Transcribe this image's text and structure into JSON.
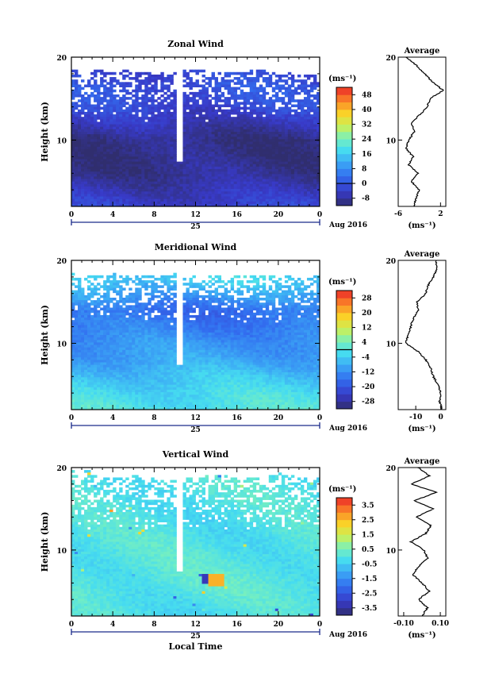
{
  "chart_data": [
    {
      "type": "heatmap",
      "title": "Zonal Wind",
      "xlabel": "",
      "ylabel": "Height (km)",
      "xlim": [
        0,
        24
      ],
      "ylim": [
        2,
        20
      ],
      "x_ticks": [
        "0",
        "4",
        "8",
        "12",
        "16",
        "20",
        "0"
      ],
      "y_ticks": [
        "10",
        "20"
      ],
      "date_label": "25",
      "date_right": "Aug 2016",
      "colorbar": {
        "unit": "(ms⁻¹)",
        "ticks": [
          "48",
          "40",
          "32",
          "24",
          "16",
          "8",
          "0",
          "-8"
        ],
        "range": [
          -12,
          52
        ],
        "contour_level": 0
      },
      "field": {
        "data_top_km": [
          18.3,
          18.0,
          18.2,
          17.8,
          17.6,
          17.9,
          18.1,
          17.7,
          17.9,
          18.0,
          17.8,
          17.6,
          17.5
        ],
        "profile_km": [
          2,
          4,
          6,
          8,
          10,
          12,
          14,
          16,
          18
        ],
        "profile_ms": [
          -3,
          -6,
          -9,
          -10,
          -10,
          -6,
          -2,
          0,
          -2
        ]
      },
      "profile": {
        "title": "Average",
        "xlabel": "(ms⁻¹)",
        "xlim": [
          -6,
          3
        ],
        "x_ticks": [
          "-6",
          "2"
        ],
        "y_ticks": [
          "10",
          "20"
        ],
        "height_km": [
          2,
          3,
          4,
          5,
          6,
          7,
          8,
          9,
          10,
          11,
          12,
          13,
          14,
          15,
          16,
          17,
          18,
          19,
          20
        ],
        "value_ms": [
          -3.0,
          -2.6,
          -2.0,
          -3.5,
          -2.2,
          -4.0,
          -3.2,
          -4.5,
          -4.0,
          -3.0,
          -3.5,
          -2.0,
          -0.5,
          0.0,
          2.5,
          0.5,
          -1.0,
          -2.5,
          -4.5
        ]
      }
    },
    {
      "type": "heatmap",
      "title": "Meridional Wind",
      "xlabel": "",
      "ylabel": "Height (km)",
      "xlim": [
        0,
        24
      ],
      "ylim": [
        2,
        20
      ],
      "x_ticks": [
        "0",
        "4",
        "8",
        "12",
        "16",
        "20",
        "0"
      ],
      "y_ticks": [
        "10",
        "20"
      ],
      "date_label": "25",
      "date_right": "Aug 2016",
      "colorbar": {
        "unit": "(ms⁻¹)",
        "ticks": [
          "28",
          "20",
          "12",
          "4",
          "-4",
          "-12",
          "-20",
          "-28"
        ],
        "range": [
          -32,
          32
        ],
        "contour_level": 0
      },
      "field": {
        "data_top_km": [
          18.0,
          17.8,
          18.1,
          17.7,
          17.9,
          18.0,
          17.6,
          17.8,
          17.9,
          17.7,
          17.8,
          17.6,
          17.7
        ],
        "profile_km": [
          2,
          4,
          6,
          8,
          10,
          12,
          14,
          16,
          18
        ],
        "profile_ms": [
          0,
          -2,
          -5,
          -9,
          -11,
          -14,
          -16,
          -9,
          -3
        ]
      },
      "profile": {
        "title": "Average",
        "xlabel": "(ms⁻¹)",
        "xlim": [
          -17,
          2
        ],
        "x_ticks": [
          "-10",
          "0"
        ],
        "y_ticks": [
          "10",
          "20"
        ],
        "height_km": [
          2,
          3,
          4,
          5,
          6,
          7,
          8,
          9,
          10,
          11,
          12,
          13,
          14,
          15,
          16,
          17,
          18,
          19,
          20
        ],
        "value_ms": [
          0.5,
          -0.5,
          0.0,
          -1.0,
          -3.0,
          -4.0,
          -6.0,
          -9.0,
          -14.0,
          -13.0,
          -12.0,
          -11.0,
          -9.0,
          -9.5,
          -6.0,
          -5.0,
          -3.0,
          -1.5,
          -2.0
        ]
      }
    },
    {
      "type": "heatmap",
      "title": "Vertical Wind",
      "xlabel": "Local Time",
      "ylabel": "Height (km)",
      "xlim": [
        0,
        24
      ],
      "ylim": [
        2,
        20
      ],
      "x_ticks": [
        "0",
        "4",
        "8",
        "12",
        "16",
        "20",
        "0"
      ],
      "y_ticks": [
        "10",
        "20"
      ],
      "date_label": "25",
      "date_right": "Aug 2016",
      "colorbar": {
        "unit": "(ms⁻¹)",
        "ticks": [
          "3.5",
          "2.5",
          "1.5",
          "0.5",
          "-0.5",
          "-1.5",
          "-2.5",
          "-3.5"
        ],
        "range": [
          -4,
          4
        ],
        "contour_level": null
      },
      "field": {
        "data_top_km": [
          19.8,
          19.0,
          18.5,
          18.7,
          18.3,
          18.6,
          18.4,
          18.8,
          18.2,
          18.5,
          18.9,
          18.4,
          18.6
        ],
        "profile_km": [
          2,
          6,
          10,
          14,
          18
        ],
        "profile_ms": [
          -0.1,
          0.1,
          0.0,
          -0.1,
          0.0
        ]
      },
      "profile": {
        "title": "Average",
        "xlabel": "(ms⁻¹)",
        "xlim": [
          -0.13,
          0.13
        ],
        "x_ticks": [
          "-0.10",
          "0.10"
        ],
        "y_ticks": [
          "10",
          "20"
        ],
        "height_km": [
          2,
          3,
          4,
          5,
          6,
          7,
          8,
          9,
          10,
          11,
          12,
          13,
          14,
          15,
          16,
          17,
          18,
          19,
          20
        ],
        "value_ms": [
          0.0,
          0.03,
          -0.02,
          0.04,
          0.0,
          -0.05,
          -0.02,
          0.03,
          0.01,
          -0.06,
          0.02,
          0.05,
          -0.03,
          0.06,
          -0.04,
          0.08,
          -0.06,
          0.04,
          -0.02
        ]
      }
    }
  ]
}
